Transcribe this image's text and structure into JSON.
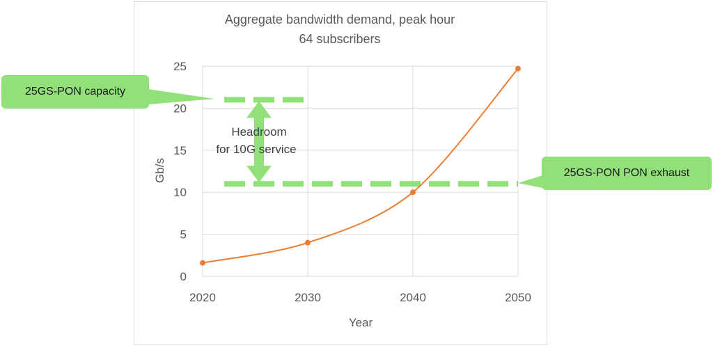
{
  "chart_data": {
    "type": "line",
    "title": "Aggregate bandwidth demand, peak hour",
    "subtitle": "64 subscribers",
    "xlabel": "Year",
    "ylabel": "Gb/s",
    "xlim": [
      2020,
      2050
    ],
    "ylim": [
      0,
      25
    ],
    "x_ticks": [
      "2020",
      "2030",
      "2040",
      "2050"
    ],
    "y_ticks": [
      "0",
      "5",
      "10",
      "15",
      "20",
      "25"
    ],
    "grid": true,
    "series": [
      {
        "x": [
          2020,
          2030,
          2040,
          2050
        ],
        "values": [
          1.6,
          4.0,
          10.0,
          24.7
        ],
        "color": "#ed7d31"
      }
    ],
    "reference_lines": [
      {
        "label": "25GS-PON capacity",
        "y": 21,
        "color": "#92e07a"
      },
      {
        "label": "25GS-PON PON exhaust",
        "y": 11,
        "color": "#92e07a"
      }
    ],
    "annotation": {
      "line1": "Headroom",
      "line2": "for 10G service",
      "y_from": 11,
      "y_to": 21
    }
  }
}
